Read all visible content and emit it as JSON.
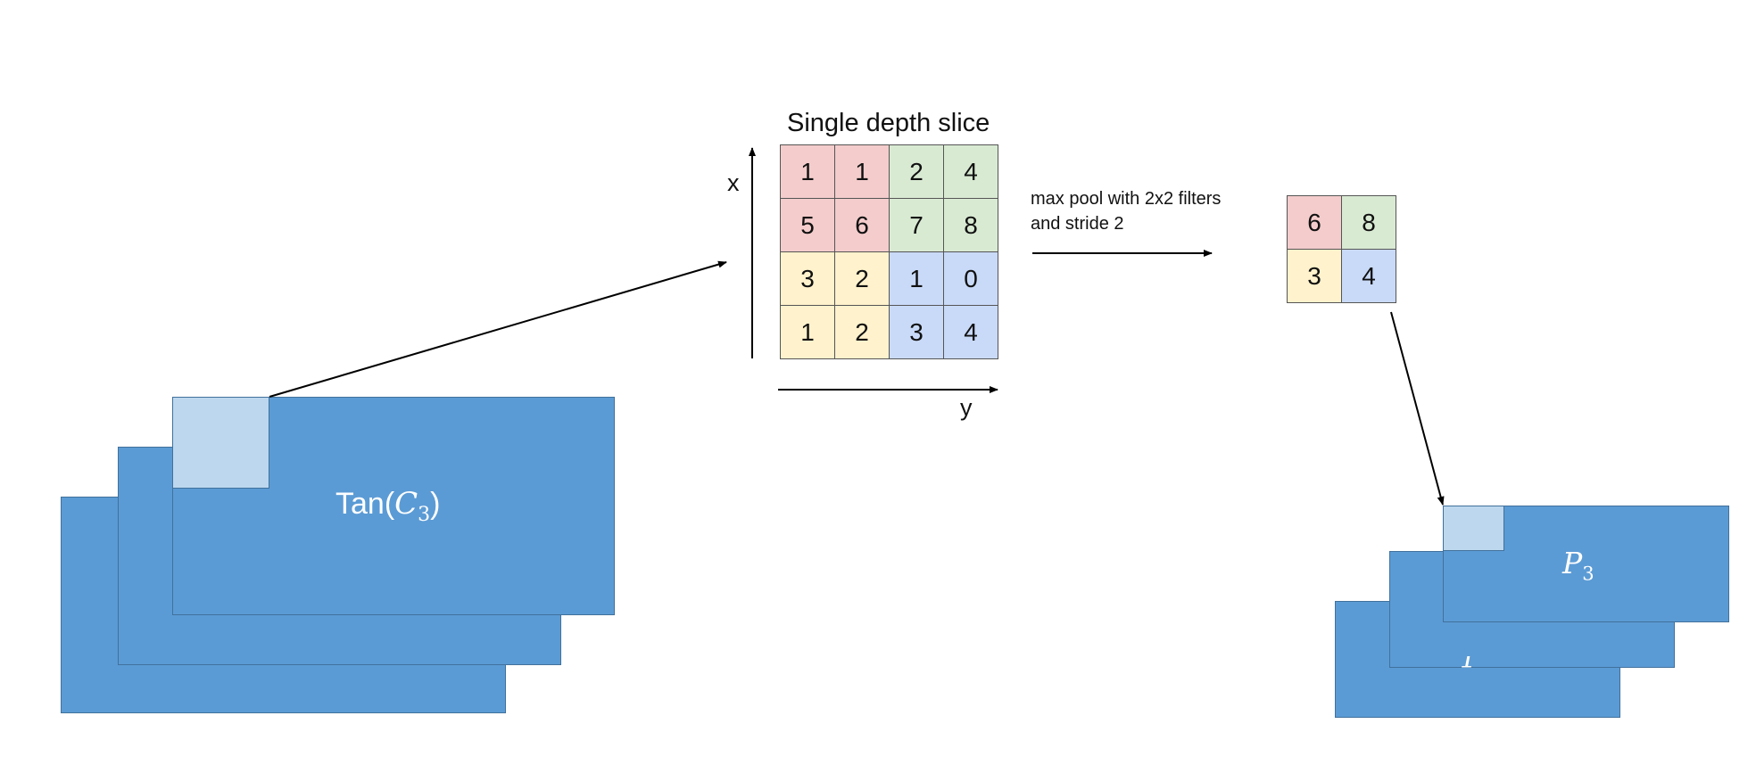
{
  "diagram": {
    "colors": {
      "plane_fill": "#5b9bd5",
      "plane_border": "#41719c",
      "patch_fill": "#bdd7ee",
      "red": "#f4cccc",
      "green": "#d9ead3",
      "yellow": "#fff2cc",
      "blue": "#c9daf8"
    },
    "input_stack": {
      "label_main": "Tan(",
      "label_var": "C",
      "label_sub": "3",
      "label_close": ")"
    },
    "slice": {
      "title": "Single depth slice",
      "x_axis": "x",
      "y_axis": "y",
      "cells": [
        [
          {
            "v": "1",
            "c": "red"
          },
          {
            "v": "1",
            "c": "red"
          },
          {
            "v": "2",
            "c": "green"
          },
          {
            "v": "4",
            "c": "green"
          }
        ],
        [
          {
            "v": "5",
            "c": "red"
          },
          {
            "v": "6",
            "c": "red"
          },
          {
            "v": "7",
            "c": "green"
          },
          {
            "v": "8",
            "c": "green"
          }
        ],
        [
          {
            "v": "3",
            "c": "yellow"
          },
          {
            "v": "2",
            "c": "yellow"
          },
          {
            "v": "1",
            "c": "blue"
          },
          {
            "v": "0",
            "c": "blue"
          }
        ],
        [
          {
            "v": "1",
            "c": "yellow"
          },
          {
            "v": "2",
            "c": "yellow"
          },
          {
            "v": "3",
            "c": "blue"
          },
          {
            "v": "4",
            "c": "blue"
          }
        ]
      ]
    },
    "operation": {
      "line1": "max pool with 2x2 filters",
      "line2": "and stride 2"
    },
    "pooled": {
      "cells": [
        [
          {
            "v": "6",
            "c": "red"
          },
          {
            "v": "8",
            "c": "green"
          }
        ],
        [
          {
            "v": "3",
            "c": "yellow"
          },
          {
            "v": "4",
            "c": "blue"
          }
        ]
      ]
    },
    "output_stack": {
      "label_var": "P",
      "label_sub": "3",
      "partial_back": "1"
    }
  }
}
